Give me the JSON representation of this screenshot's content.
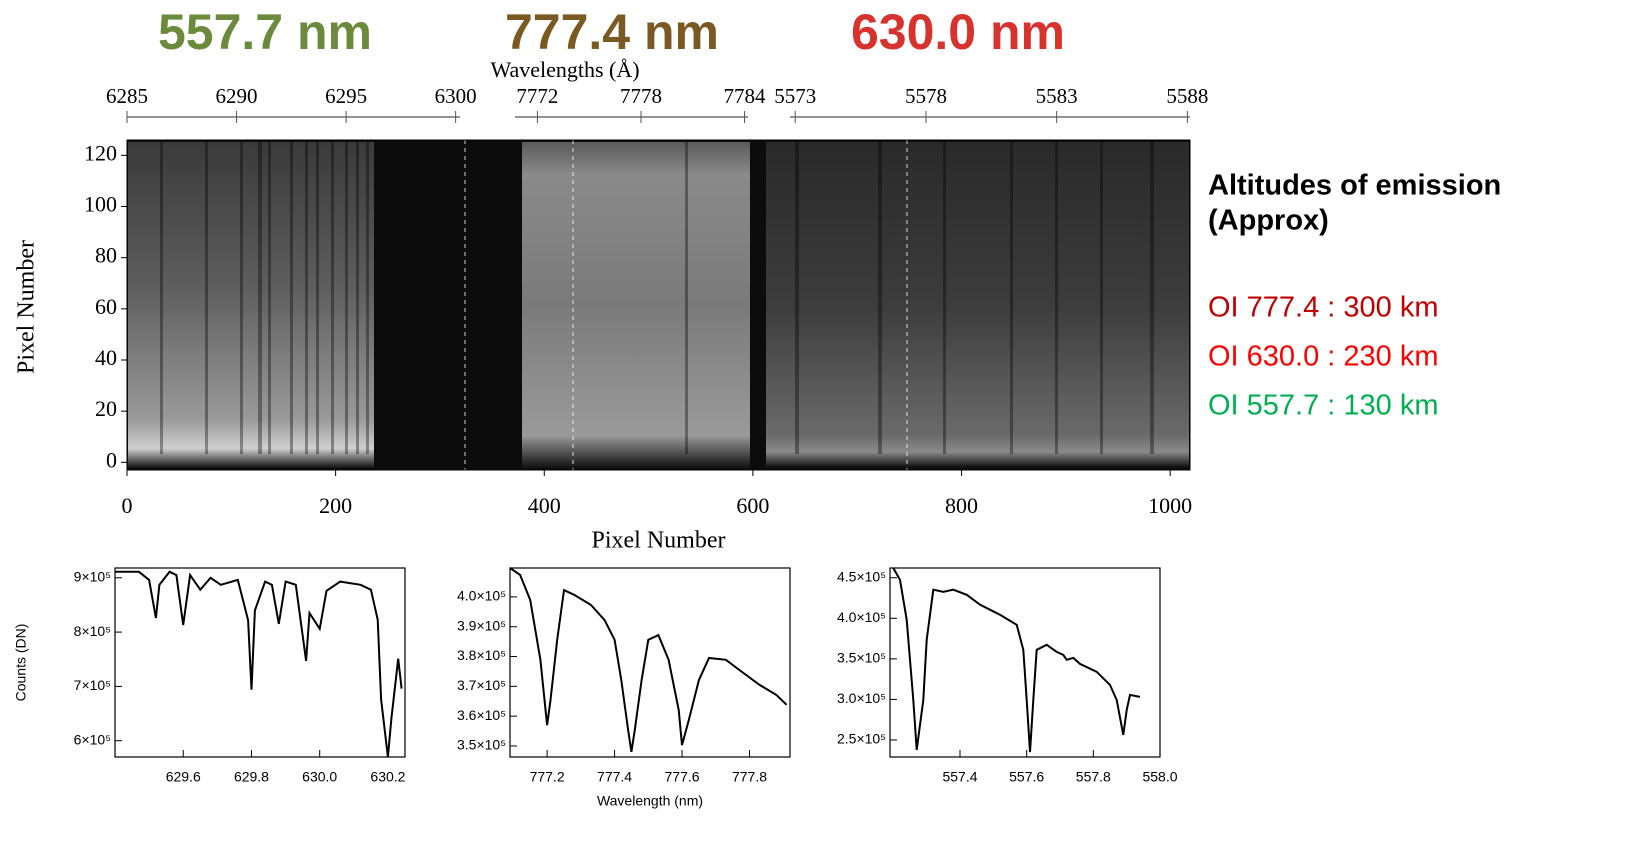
{
  "headers": [
    {
      "text": "557.7 nm",
      "color": "#6b8a3c"
    },
    {
      "text": "777.4 nm",
      "color": "#7a5a22"
    },
    {
      "text": "630.0 nm",
      "color": "#d8322e"
    }
  ],
  "notes": {
    "title": "Altitudes of emission",
    "subtitle": "(Approx)",
    "lines": [
      {
        "text": "OI 777.4 : 300 km",
        "color": "#c00000"
      },
      {
        "text": "OI 630.0 : 230 km",
        "color": "#ff0000"
      },
      {
        "text": "OI 557.7 : 130 km",
        "color": "#00b050"
      }
    ]
  },
  "chart_data": [
    {
      "type": "image",
      "xlabel": "Pixel Number",
      "ylabel": "Pixel Number",
      "xlim": [
        0,
        1019
      ],
      "xticks": [
        0,
        200,
        400,
        600,
        800,
        1000
      ],
      "ylim": [
        -3,
        126
      ],
      "yticks": [
        0,
        20,
        40,
        60,
        80,
        100,
        120
      ],
      "top_axis": {
        "label": "Wavelengths (Å)",
        "segments": [
          {
            "xlim": [
              6285,
              6300.2
            ],
            "xticks": [
              6285,
              6290,
              6295,
              6300
            ]
          },
          {
            "xlim": [
              7770.7,
              7784.2
            ],
            "xticks": [
              7772,
              7778,
              7784
            ]
          },
          {
            "xlim": [
              5572.8,
              5588.1
            ],
            "xticks": [
              5573,
              5578,
              5583,
              5588
            ]
          }
        ]
      }
    },
    {
      "type": "line",
      "ylabel": "Counts (DN)",
      "color": "#000000",
      "xlim": [
        629.4,
        630.25
      ],
      "xticks": [
        629.6,
        629.8,
        {
          "value": 630,
          "label": "630.0"
        },
        630.2
      ],
      "ylim": [
        570000,
        918000
      ],
      "yticks": [
        {
          "value": 600000,
          "label": "6×10⁵"
        },
        {
          "value": 700000,
          "label": "7×10⁵"
        },
        {
          "value": 800000,
          "label": "8×10⁵"
        },
        {
          "value": 900000,
          "label": "9×10⁵"
        }
      ],
      "x": [
        629.4,
        629.47,
        629.5,
        629.52,
        629.53,
        629.56,
        629.58,
        629.6,
        629.62,
        629.65,
        629.68,
        629.71,
        629.76,
        629.79,
        629.8,
        629.81,
        629.84,
        629.86,
        629.88,
        629.9,
        629.93,
        629.96,
        629.97,
        630.0,
        630.02,
        630.06,
        630.12,
        630.15,
        630.17,
        630.18,
        630.2,
        630.21,
        630.23,
        630.24
      ],
      "values": [
        911000,
        911000,
        896000,
        826000,
        887000,
        911000,
        905000,
        813000,
        905000,
        878000,
        900000,
        887000,
        896000,
        822000,
        694000,
        840000,
        893000,
        887000,
        815000,
        893000,
        887000,
        747000,
        835000,
        806000,
        876000,
        893000,
        887000,
        878000,
        823000,
        676000,
        570000,
        641000,
        751000,
        696000
      ]
    },
    {
      "type": "line",
      "xlabel": "Wavelength (nm)",
      "color": "#000000",
      "xlim": [
        777.09,
        777.92
      ],
      "xticks": [
        777.2,
        777.4,
        777.6,
        777.8
      ],
      "ylim": [
        346300,
        409700
      ],
      "yticks": [
        {
          "value": 350000,
          "label": "3.5×10⁵"
        },
        {
          "value": 360000,
          "label": "3.6×10⁵"
        },
        {
          "value": 370000,
          "label": "3.7×10⁵"
        },
        {
          "value": 380000,
          "label": "3.8×10⁵"
        },
        {
          "value": 390000,
          "label": "3.9×10⁵"
        },
        {
          "value": 400000,
          "label": "4.0×10⁵"
        }
      ],
      "x": [
        777.09,
        777.12,
        777.15,
        777.18,
        777.2,
        777.21,
        777.23,
        777.25,
        777.28,
        777.33,
        777.37,
        777.4,
        777.42,
        777.44,
        777.45,
        777.46,
        777.48,
        777.5,
        777.53,
        777.56,
        777.59,
        777.6,
        777.62,
        777.65,
        777.68,
        777.73,
        777.77,
        777.83,
        777.88,
        777.91
      ],
      "values": [
        409700,
        407400,
        399000,
        378900,
        357000,
        365400,
        385600,
        402300,
        400700,
        397300,
        392300,
        385600,
        372100,
        355400,
        348000,
        355400,
        372100,
        385600,
        387200,
        378900,
        362100,
        350300,
        358700,
        372100,
        379500,
        378900,
        375500,
        370500,
        367100,
        363800
      ]
    },
    {
      "type": "line",
      "color": "#000000",
      "xlim": [
        557.19,
        558.0
      ],
      "xticks": [
        557.4,
        557.6,
        557.8,
        {
          "value": 558,
          "label": "558.0"
        }
      ],
      "ylim": [
        229000,
        462000
      ],
      "yticks": [
        {
          "value": 250000,
          "label": "2.5×10⁵"
        },
        {
          "value": 300000,
          "label": "3.0×10⁵"
        },
        {
          "value": 350000,
          "label": "3.5×10⁵"
        },
        {
          "value": 400000,
          "label": "4.0×10⁵"
        },
        {
          "value": 450000,
          "label": "4.5×10⁵"
        }
      ],
      "x": [
        557.2,
        557.22,
        557.24,
        557.26,
        557.27,
        557.29,
        557.3,
        557.32,
        557.35,
        557.38,
        557.42,
        557.46,
        557.52,
        557.57,
        557.59,
        557.6,
        557.61,
        557.62,
        557.63,
        557.66,
        557.69,
        557.71,
        557.72,
        557.74,
        557.76,
        557.81,
        557.85,
        557.87,
        557.89,
        557.9,
        557.91,
        557.94
      ],
      "values": [
        462000,
        447500,
        398100,
        299300,
        237700,
        299300,
        373500,
        435200,
        432700,
        435200,
        429000,
        416700,
        404300,
        392000,
        361100,
        299300,
        235200,
        299300,
        361100,
        367300,
        358600,
        354900,
        348800,
        351200,
        343800,
        334000,
        317900,
        299300,
        256200,
        287000,
        305600,
        303100
      ]
    }
  ]
}
